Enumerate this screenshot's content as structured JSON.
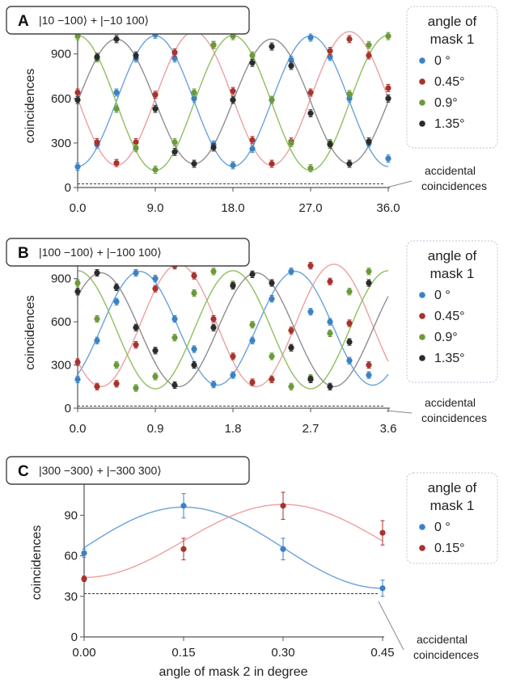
{
  "chart_data": [
    {
      "type": "scatter",
      "panel_letter": "A",
      "title": "|10 −100⟩ + |−10  100⟩",
      "ylabel": "coincidences",
      "xlabel": "",
      "xlim": [
        0,
        36
      ],
      "ylim": [
        0,
        1100
      ],
      "xticks": [
        0,
        9,
        18,
        27,
        36
      ],
      "xtick_labels": [
        "0.0",
        "9.0",
        "18.0",
        "27.0",
        "36.0"
      ],
      "yticks": [
        0,
        300,
        600,
        900
      ],
      "yticks_labels": [
        "0",
        "300",
        "600",
        "900"
      ],
      "accidental_level": 25,
      "annotation": [
        "accidental",
        "coincidences"
      ],
      "legend": {
        "title": [
          "angle of",
          "mask 1"
        ],
        "placement": "right"
      },
      "series": [
        {
          "name": "0 °",
          "color": "#3b82c4",
          "line_color": "#6aa2dc",
          "fit": {
            "offset": 582,
            "amp": 440,
            "period": 18,
            "phase_x": 9
          },
          "x": [
            0,
            2.25,
            4.5,
            6.75,
            9,
            11.25,
            13.5,
            15.75,
            18,
            20.25,
            22.5,
            24.75,
            27,
            29.25,
            31.5,
            33.75,
            36
          ],
          "y": [
            140,
            290,
            640,
            870,
            1030,
            870,
            600,
            290,
            150,
            260,
            590,
            860,
            1010,
            880,
            600,
            300,
            195
          ]
        },
        {
          "name": "0.45°",
          "color": "#a8322d",
          "line_color": "#eda0a0",
          "fit": {
            "offset": 600,
            "amp": 450,
            "period": 18,
            "phase_x": 13.5
          },
          "x": [
            0,
            2.25,
            4.5,
            6.75,
            9,
            11.25,
            13.5,
            15.75,
            18,
            20.25,
            22.5,
            24.75,
            27,
            29.25,
            31.5,
            33.75,
            36
          ],
          "y": [
            640,
            305,
            165,
            305,
            625,
            910,
            1080,
            960,
            650,
            320,
            160,
            310,
            640,
            920,
            1000,
            890,
            670
          ]
        },
        {
          "name": "0.9°",
          "color": "#6a9a3a",
          "line_color": "#8fbf5e",
          "fit": {
            "offset": 570,
            "amp": 455,
            "period": 18,
            "phase_x": 0
          },
          "x": [
            0,
            2.25,
            4.5,
            6.75,
            9,
            11.25,
            13.5,
            15.75,
            18,
            20.25,
            22.5,
            24.75,
            27,
            29.25,
            31.5,
            33.75,
            36
          ],
          "y": [
            1020,
            870,
            530,
            265,
            120,
            305,
            640,
            960,
            1020,
            890,
            590,
            300,
            130,
            300,
            630,
            960,
            1020
          ]
        },
        {
          "name": "1.35°",
          "color": "#2b2b2b",
          "line_color": "#8e8e8e",
          "fit": {
            "offset": 580,
            "amp": 420,
            "period": 18,
            "phase_x": 4.5
          },
          "x": [
            0,
            2.25,
            4.5,
            6.75,
            9,
            11.25,
            13.5,
            15.75,
            18,
            20.25,
            22.5,
            24.75,
            27,
            29.25,
            31.5,
            33.75,
            36
          ],
          "y": [
            590,
            880,
            1000,
            890,
            530,
            240,
            160,
            270,
            590,
            840,
            950,
            820,
            500,
            290,
            160,
            310,
            600
          ]
        }
      ]
    },
    {
      "type": "scatter",
      "panel_letter": "B",
      "title": "|100 −100⟩ + |−100  100⟩",
      "ylabel": "coincidences",
      "xlabel": "",
      "xlim": [
        0,
        3.6
      ],
      "ylim": [
        0,
        1050
      ],
      "xticks": [
        0,
        0.9,
        1.8,
        2.7,
        3.6
      ],
      "xtick_labels": [
        "0.0",
        "0.9",
        "1.8",
        "2.7",
        "3.6"
      ],
      "yticks": [
        0,
        300,
        600,
        900
      ],
      "yticks_labels": [
        "0",
        "300",
        "600",
        "900"
      ],
      "accidental_level": 15,
      "annotation": [
        "accidental",
        "coincidences"
      ],
      "legend": {
        "title": [
          "angle of",
          "mask 1"
        ],
        "placement": "right"
      },
      "series": [
        {
          "name": "0 °",
          "color": "#3b82c4",
          "line_color": "#6aa2dc",
          "fit": {
            "offset": 555,
            "amp": 395,
            "period": 1.8,
            "phase_x": 0.72
          },
          "x": [
            0,
            0.225,
            0.45,
            0.675,
            0.9,
            1.125,
            1.35,
            1.575,
            1.8,
            2.025,
            2.25,
            2.475,
            2.7,
            2.925,
            3.15,
            3.375
          ],
          "y": [
            200,
            470,
            740,
            940,
            900,
            620,
            410,
            165,
            230,
            470,
            760,
            950,
            670,
            600,
            330,
            230
          ]
        },
        {
          "name": "0.45°",
          "color": "#a8322d",
          "line_color": "#eda0a0",
          "fit": {
            "offset": 575,
            "amp": 425,
            "period": 1.8,
            "phase_x": 1.17
          },
          "x": [
            0,
            0.225,
            0.45,
            0.675,
            0.9,
            1.125,
            1.35,
            1.575,
            1.8,
            2.025,
            2.25,
            2.475,
            2.7,
            2.925,
            3.15,
            3.375
          ],
          "y": [
            320,
            150,
            170,
            440,
            830,
            990,
            920,
            620,
            360,
            180,
            200,
            540,
            990,
            880,
            590,
            300
          ]
        },
        {
          "name": "0.9°",
          "color": "#6a9a3a",
          "line_color": "#8fbf5e",
          "fit": {
            "offset": 545,
            "amp": 410,
            "period": 1.8,
            "phase_x": 0
          },
          "x": [
            0,
            0.225,
            0.45,
            0.675,
            0.9,
            1.125,
            1.35,
            1.575,
            1.8,
            2.025,
            2.25,
            2.475,
            2.7,
            2.925,
            3.15,
            3.375
          ],
          "y": [
            870,
            620,
            300,
            140,
            220,
            490,
            800,
            950,
            860,
            580,
            360,
            150,
            210,
            520,
            810,
            950
          ]
        },
        {
          "name": "1.35°",
          "color": "#2b2b2b",
          "line_color": "#8e8e8e",
          "fit": {
            "offset": 545,
            "amp": 395,
            "period": 1.8,
            "phase_x": 0.27
          },
          "x": [
            0,
            0.225,
            0.45,
            0.675,
            0.9,
            1.125,
            1.35,
            1.575,
            1.8,
            2.025,
            2.25,
            2.475,
            2.7,
            2.925,
            3.15,
            3.375
          ],
          "y": [
            810,
            940,
            840,
            560,
            400,
            160,
            300,
            560,
            850,
            930,
            870,
            420,
            200,
            150,
            460,
            870
          ]
        }
      ]
    },
    {
      "type": "scatter",
      "panel_letter": "C",
      "title": "|300 −300⟩ + |−300  300⟩",
      "ylabel": "coincidences",
      "xlabel": "angle of mask 2 in degree",
      "xlim": [
        0,
        0.45
      ],
      "ylim": [
        0,
        110
      ],
      "xticks": [
        0,
        0.15,
        0.3,
        0.45
      ],
      "xtick_labels": [
        "0.00",
        "0.15",
        "0.30",
        "0.45"
      ],
      "yticks": [
        0,
        30,
        60,
        90
      ],
      "yticks_labels": [
        "0",
        "30",
        "60",
        "90"
      ],
      "accidental_level": 32,
      "annotation": [
        "accidental",
        "coincidences"
      ],
      "legend": {
        "title": [
          "angle of",
          "mask 1"
        ],
        "placement": "right"
      },
      "series": [
        {
          "name": "0 °",
          "color": "#3b82c4",
          "line_color": "#6aa2dc",
          "fit": {
            "offset": 66,
            "amp": 30,
            "period": 0.6,
            "phase_x": 0.15
          },
          "x": [
            0,
            0.15,
            0.3,
            0.45
          ],
          "y": [
            62,
            97,
            65,
            36
          ],
          "err": [
            3,
            9,
            8,
            6
          ]
        },
        {
          "name": "0.15°",
          "color": "#a8322d",
          "line_color": "#eda0a0",
          "fit": {
            "offset": 71,
            "amp": 27,
            "period": 0.6,
            "phase_x": 0.3
          },
          "x": [
            0,
            0.15,
            0.3,
            0.45
          ],
          "y": [
            43,
            65,
            97,
            77
          ],
          "err": [
            2,
            8,
            10,
            9
          ]
        }
      ]
    }
  ]
}
